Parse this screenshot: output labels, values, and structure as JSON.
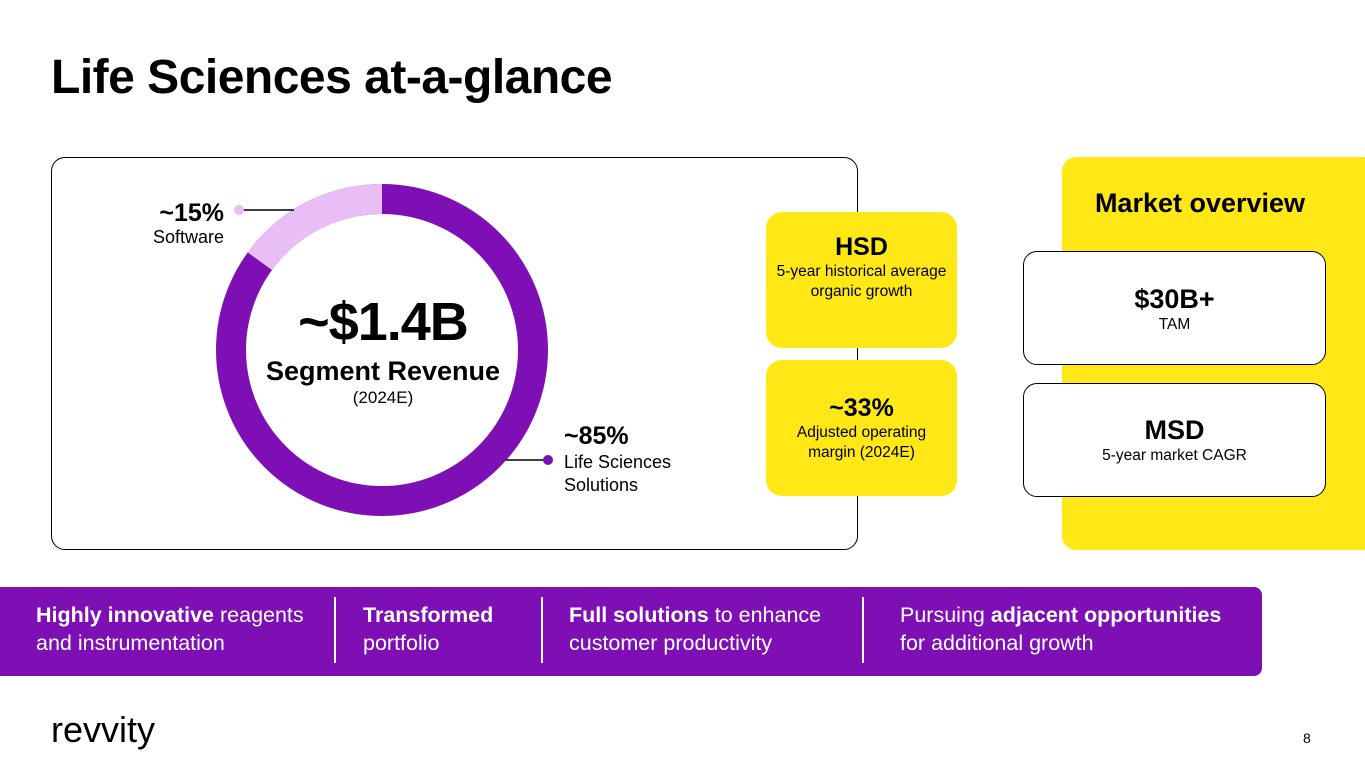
{
  "title": "Life Sciences at-a-glance",
  "revenue": {
    "value": "~$1.4B",
    "label": "Segment Revenue",
    "sub": "(2024E)",
    "segments": [
      {
        "percent_text": "~15%",
        "name": "Software",
        "share": 0.15,
        "color": "#E9BEF7"
      },
      {
        "percent_text": "~85%",
        "name_line1": "Life Sciences",
        "name_line2": "Solutions",
        "share": 0.85,
        "color": "#7E0FB5"
      }
    ]
  },
  "kpis": [
    {
      "value": "HSD",
      "label": "5-year historical average organic growth"
    },
    {
      "value": "~33%",
      "label": "Adjusted operating margin (2024E)"
    }
  ],
  "market": {
    "title": "Market overview",
    "cards": [
      {
        "value": "$30B+",
        "label": "TAM"
      },
      {
        "value": "MSD",
        "label": "5-year market CAGR"
      }
    ]
  },
  "pillars": [
    {
      "bold": "Highly innovative",
      "text1": " reagents",
      "text2": "and instrumentation"
    },
    {
      "bold": "Transformed",
      "text1": "",
      "text2": "portfolio"
    },
    {
      "bold": "Full solutions",
      "text1": " to enhance",
      "text2": "customer productivity"
    },
    {
      "pre": "Pursuing ",
      "bold": "adjacent opportunities",
      "text2": "for additional growth"
    }
  ],
  "logo": "revvity",
  "page_number": "8",
  "colors": {
    "purple": "#7E0FB5",
    "light_purple": "#E9BEF7",
    "yellow": "#FFE816"
  }
}
